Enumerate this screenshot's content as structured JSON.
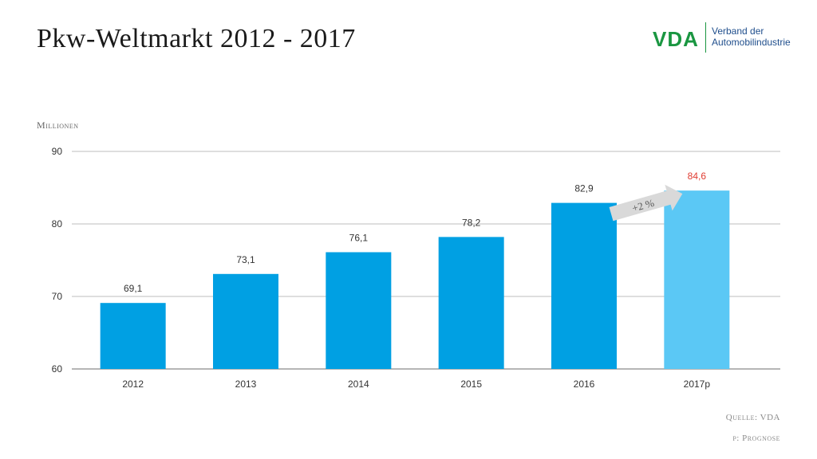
{
  "title": "Pkw-Weltmarkt 2012 - 2017",
  "logo": {
    "mark": "VDA",
    "line1": "Verband der",
    "line2": "Automobilindustrie"
  },
  "unit_label": "Millionen",
  "source": "Quelle: VDA",
  "footnote": "p: Prognose",
  "colors": {
    "bar": "#00a0e3",
    "forecast_bar": "#5bc8f5",
    "highlight_label": "#e03c31",
    "grid": "#bdbdbd",
    "arrow": "#d9d9d9",
    "logo_green": "#1a9641",
    "logo_blue": "#1f4e8c"
  },
  "chart_data": {
    "type": "bar",
    "categories": [
      "2012",
      "2013",
      "2014",
      "2015",
      "2016",
      "2017p"
    ],
    "values": [
      69.1,
      73.1,
      76.1,
      78.2,
      82.9,
      84.6
    ],
    "value_labels": [
      "69,1",
      "73,1",
      "76,1",
      "78,2",
      "82,9",
      "84,6"
    ],
    "ylim": [
      60,
      90
    ],
    "yticks": [
      60,
      70,
      80,
      90
    ],
    "ylabel": "Millionen",
    "xlabel": "",
    "grid": true,
    "forecast_index": 5,
    "annotation": {
      "text": "+2 %",
      "from_category": "2016",
      "to_category": "2017p"
    }
  }
}
